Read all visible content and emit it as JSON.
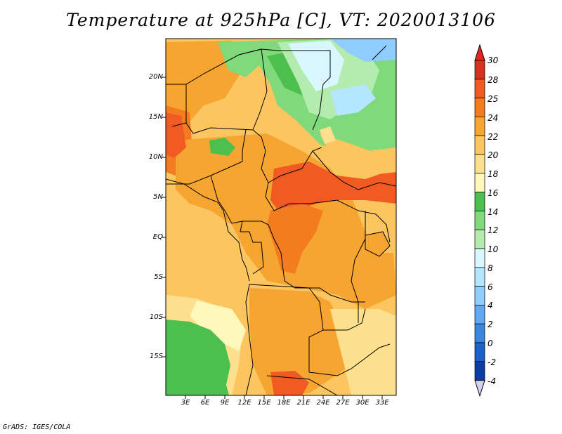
{
  "title": "Temperature at 925hPa [C], VT: 2020013106",
  "footer": "GrADS: IGES/COLA",
  "lat_labels": [
    "20N",
    "15N",
    "10N",
    "5N",
    "EQ",
    "5S",
    "10S",
    "15S"
  ],
  "lon_labels": [
    "3E",
    "6E",
    "9E",
    "12E",
    "15E",
    "18E",
    "21E",
    "24E",
    "27E",
    "30E",
    "33E"
  ],
  "colorbar": {
    "levels": [
      "30",
      "28",
      "25",
      "24",
      "22",
      "20",
      "18",
      "16",
      "14",
      "12",
      "10",
      "8",
      "6",
      "4",
      "2",
      "0",
      "-2",
      "-4"
    ],
    "colors": [
      "#d7301f",
      "#f15a22",
      "#f47c20",
      "#f7a531",
      "#fbc55f",
      "#fde08e",
      "#fff7bb",
      "#4dbf4d",
      "#80d97a",
      "#b3ecae",
      "#d9f7ff",
      "#b4e6ff",
      "#8fcdff",
      "#5fa8f2",
      "#3a87e0",
      "#1a61c8",
      "#0b3ea3",
      "#08145e"
    ],
    "top_color": "#e0281e",
    "bottom_color": "#d0d4f2"
  },
  "palette": {
    "land_warm": "#fbc55f",
    "land_hot": "#f47c20",
    "land_cool": "#80d97a",
    "border": "#000000"
  }
}
